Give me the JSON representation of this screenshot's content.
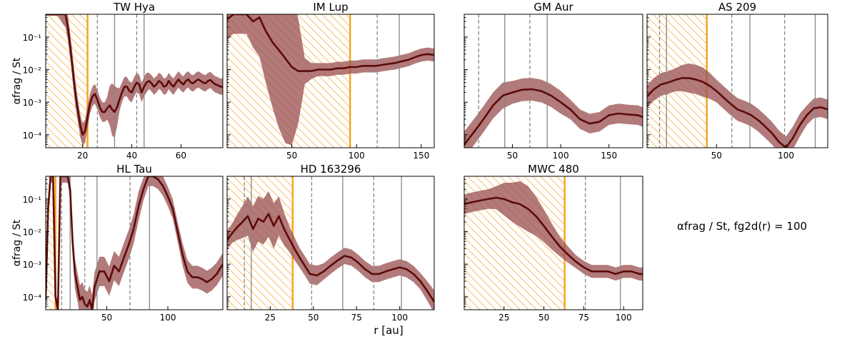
{
  "figure": {
    "xlabel": "r [au]",
    "ylabel": "αfrag / St",
    "legend_text": "αfrag / St, fg2d(r) = 100",
    "colors": {
      "line": "#5c0a0a",
      "band": "#9c5555",
      "hatch": "#f5a623",
      "gap_line": "#888888"
    }
  },
  "chart_data": [
    {
      "type": "line",
      "title": "TW Hya",
      "xlim": [
        5,
        77
      ],
      "xticks": [
        20,
        40,
        60
      ],
      "ylim": [
        4e-05,
        0.5
      ],
      "yscale": "log",
      "yticks": [
        "10⁻¹",
        "10⁻²",
        "10⁻³",
        "10⁻⁴"
      ],
      "hatch_region": [
        5,
        22
      ],
      "gaps_dashed": [
        26,
        42
      ],
      "rings_solid": [
        33,
        45
      ],
      "series": [
        {
          "x": [
            5,
            8,
            10,
            12,
            13,
            14,
            15,
            16,
            17,
            18,
            19,
            20,
            21,
            22,
            23,
            24,
            25,
            26,
            27,
            28,
            29,
            30,
            31,
            32,
            33,
            34,
            35,
            36,
            37,
            38,
            39,
            40,
            41,
            42,
            43,
            44,
            45,
            46,
            47,
            48,
            49,
            50,
            51,
            52,
            53,
            54,
            55,
            56,
            57,
            58,
            59,
            60,
            61,
            62,
            63,
            64,
            65,
            66,
            67,
            68,
            69,
            70,
            71,
            72,
            73,
            74,
            75,
            76,
            77
          ],
          "y": [
            0.5,
            0.5,
            0.5,
            0.5,
            0.5,
            0.2,
            0.05,
            0.01,
            0.002,
            0.0006,
            0.0002,
            0.0001,
            0.00013,
            0.00035,
            0.0009,
            0.0015,
            0.0018,
            0.0012,
            0.0007,
            0.0005,
            0.0005,
            0.00065,
            0.0008,
            0.0006,
            0.0005,
            0.0007,
            0.0012,
            0.002,
            0.003,
            0.003,
            0.0022,
            0.002,
            0.003,
            0.004,
            0.0035,
            0.002,
            0.003,
            0.004,
            0.0045,
            0.0038,
            0.003,
            0.0035,
            0.0045,
            0.004,
            0.003,
            0.0032,
            0.0045,
            0.0035,
            0.003,
            0.004,
            0.005,
            0.004,
            0.0035,
            0.0045,
            0.005,
            0.004,
            0.0038,
            0.0045,
            0.005,
            0.0045,
            0.004,
            0.0038,
            0.0045,
            0.0048,
            0.004,
            0.0035,
            0.0033,
            0.003,
            0.003
          ],
          "band_width": [
            0.05,
            0.05,
            0.05,
            0.3,
            0.4,
            0.4,
            0.4,
            0.4,
            0.4,
            0.35,
            0.35,
            0.35,
            0.35,
            0.35,
            0.3,
            0.3,
            0.3,
            0.3,
            0.3,
            0.3,
            0.3,
            0.35,
            0.6,
            0.8,
            0.8,
            0.6,
            0.35,
            0.3,
            0.3,
            0.3,
            0.3,
            0.3,
            0.3,
            0.3,
            0.3,
            0.3,
            0.3,
            0.3,
            0.25,
            0.25,
            0.25,
            0.25,
            0.25,
            0.25,
            0.25,
            0.25,
            0.25,
            0.25,
            0.25,
            0.25,
            0.25,
            0.25,
            0.25,
            0.25,
            0.25,
            0.25,
            0.25,
            0.25,
            0.25,
            0.25,
            0.25,
            0.25,
            0.25,
            0.25,
            0.25,
            0.25,
            0.25,
            0.25,
            0.25
          ]
        }
      ]
    },
    {
      "type": "line",
      "title": "IM Lup",
      "xlim": [
        0,
        160
      ],
      "xticks": [
        50,
        100,
        150
      ],
      "ylim": [
        4e-05,
        0.5
      ],
      "yscale": "log",
      "yticks": [],
      "hatch_region": [
        0,
        95
      ],
      "gaps_dashed": [
        116
      ],
      "rings_solid": [
        133
      ],
      "series": [
        {
          "x": [
            0,
            5,
            10,
            15,
            20,
            25,
            30,
            35,
            40,
            45,
            50,
            55,
            60,
            65,
            70,
            75,
            80,
            85,
            90,
            95,
            100,
            105,
            110,
            115,
            120,
            125,
            130,
            135,
            140,
            145,
            150,
            155,
            160
          ],
          "y": [
            0.35,
            0.5,
            0.5,
            0.5,
            0.3,
            0.4,
            0.15,
            0.07,
            0.04,
            0.022,
            0.012,
            0.009,
            0.009,
            0.009,
            0.01,
            0.01,
            0.01,
            0.011,
            0.011,
            0.012,
            0.012,
            0.013,
            0.013,
            0.013,
            0.014,
            0.015,
            0.016,
            0.018,
            0.02,
            0.024,
            0.028,
            0.03,
            0.028
          ],
          "band_width": [
            0.6,
            0.6,
            0.6,
            0.6,
            0.8,
            1.2,
            1.6,
            2.0,
            2.4,
            2.6,
            2.4,
            1.6,
            0.4,
            0.25,
            0.2,
            0.2,
            0.2,
            0.2,
            0.2,
            0.2,
            0.2,
            0.2,
            0.2,
            0.2,
            0.2,
            0.2,
            0.2,
            0.2,
            0.2,
            0.2,
            0.2,
            0.2,
            0.2
          ]
        }
      ]
    },
    {
      "type": "line",
      "title": "GM Aur",
      "xlim": [
        0,
        185
      ],
      "xticks": [
        50,
        100,
        150
      ],
      "ylim": [
        4e-05,
        0.5
      ],
      "yscale": "log",
      "yticks": [],
      "hatch_region": null,
      "gaps_dashed": [
        15,
        68
      ],
      "rings_solid": [
        42,
        86
      ],
      "series": [
        {
          "x": [
            0,
            10,
            20,
            30,
            40,
            50,
            60,
            70,
            80,
            90,
            100,
            110,
            120,
            130,
            140,
            150,
            160,
            170,
            180,
            185
          ],
          "y": [
            5e-05,
            0.00012,
            0.0003,
            0.0008,
            0.0016,
            0.002,
            0.0024,
            0.0025,
            0.0022,
            0.0016,
            0.001,
            0.0006,
            0.0003,
            0.00022,
            0.00025,
            0.0004,
            0.00045,
            0.00042,
            0.0004,
            0.00035
          ],
          "band_width": [
            0.4,
            0.4,
            0.4,
            0.4,
            0.4,
            0.35,
            0.35,
            0.35,
            0.35,
            0.35,
            0.35,
            0.3,
            0.3,
            0.3,
            0.3,
            0.3,
            0.3,
            0.3,
            0.3,
            0.3
          ]
        }
      ]
    },
    {
      "type": "line",
      "title": "AS 209",
      "xlim": [
        0,
        130
      ],
      "xticks": [
        50,
        100
      ],
      "ylim": [
        4e-05,
        0.5
      ],
      "yscale": "log",
      "yticks": [],
      "hatch_region": [
        0,
        43
      ],
      "gaps_dashed": [
        9,
        61,
        99
      ],
      "rings_solid": [
        14,
        74,
        121
      ],
      "series": [
        {
          "x": [
            0,
            5,
            10,
            15,
            20,
            25,
            30,
            35,
            40,
            45,
            50,
            55,
            60,
            65,
            70,
            75,
            80,
            85,
            90,
            95,
            100,
            105,
            110,
            115,
            120,
            125,
            130
          ],
          "y": [
            0.0015,
            0.0025,
            0.0035,
            0.004,
            0.0048,
            0.0055,
            0.0055,
            0.005,
            0.0042,
            0.0032,
            0.0022,
            0.0014,
            0.0009,
            0.0006,
            0.0005,
            0.0004,
            0.00028,
            0.00018,
            0.00011,
            6e-05,
            4e-05,
            8e-05,
            0.0002,
            0.0004,
            0.00065,
            0.0007,
            0.0006
          ],
          "band_width": [
            0.35,
            0.35,
            0.35,
            0.35,
            0.35,
            0.4,
            0.45,
            0.45,
            0.45,
            0.4,
            0.35,
            0.35,
            0.35,
            0.35,
            0.35,
            0.35,
            0.35,
            0.35,
            0.35,
            0.35,
            0.35,
            0.35,
            0.35,
            0.3,
            0.3,
            0.3,
            0.3
          ]
        }
      ]
    },
    {
      "type": "line",
      "title": "HL Tau",
      "xlim": [
        0,
        145
      ],
      "xticks": [
        50,
        100
      ],
      "ylim": [
        4e-05,
        0.5
      ],
      "yscale": "log",
      "yticks": [
        "10⁻¹",
        "10⁻²",
        "10⁻³",
        "10⁻⁴"
      ],
      "hatch_region": [
        0,
        8
      ],
      "gaps_dashed": [
        13,
        32,
        69
      ],
      "rings_solid": [
        20,
        42,
        85
      ],
      "series": [
        {
          "x": [
            0,
            2,
            4,
            6,
            8,
            10,
            12,
            14,
            16,
            18,
            20,
            22,
            24,
            26,
            28,
            30,
            32,
            34,
            36,
            38,
            40,
            44,
            48,
            52,
            56,
            60,
            64,
            68,
            72,
            76,
            80,
            84,
            88,
            92,
            96,
            100,
            104,
            108,
            112,
            116,
            120,
            124,
            128,
            132,
            136,
            140,
            145
          ],
          "y": [
            8e-05,
            0.05,
            0.5,
            0.5,
            0.0001,
            4e-05,
            0.5,
            0.5,
            0.5,
            0.5,
            0.2,
            0.005,
            0.0005,
            0.0002,
            8e-05,
            0.0001,
            6e-05,
            5e-05,
            8e-05,
            4e-05,
            0.0002,
            0.0006,
            0.0006,
            0.0003,
            0.0009,
            0.0006,
            0.0016,
            0.004,
            0.012,
            0.06,
            0.2,
            0.5,
            0.5,
            0.4,
            0.25,
            0.12,
            0.05,
            0.01,
            0.002,
            0.0006,
            0.0004,
            0.0004,
            0.00035,
            0.00028,
            0.00035,
            0.0005,
            0.001
          ],
          "band_width": [
            0.2,
            0.2,
            0.2,
            0.2,
            0.2,
            0.2,
            0.2,
            0.2,
            0.2,
            0.2,
            0.3,
            0.4,
            0.45,
            0.45,
            0.45,
            0.45,
            0.45,
            0.45,
            0.45,
            0.45,
            0.45,
            0.45,
            0.45,
            0.45,
            0.45,
            0.45,
            0.45,
            0.45,
            0.45,
            0.45,
            0.35,
            0.3,
            0.3,
            0.3,
            0.3,
            0.3,
            0.3,
            0.3,
            0.35,
            0.35,
            0.35,
            0.35,
            0.35,
            0.35,
            0.35,
            0.35,
            0.35
          ]
        }
      ]
    },
    {
      "type": "line",
      "title": "HD 163296",
      "xlim": [
        0,
        120
      ],
      "xticks": [
        25,
        50,
        75,
        100
      ],
      "ylim": [
        4e-05,
        0.5
      ],
      "yscale": "log",
      "yticks": [],
      "hatch_region": [
        0,
        38
      ],
      "gaps_dashed": [
        10,
        49,
        85
      ],
      "rings_solid": [
        14,
        67,
        101
      ],
      "series": [
        {
          "x": [
            0,
            3,
            6,
            9,
            12,
            15,
            18,
            21,
            24,
            27,
            30,
            33,
            36,
            39,
            42,
            45,
            48,
            52,
            56,
            60,
            64,
            68,
            72,
            76,
            80,
            84,
            88,
            92,
            96,
            100,
            104,
            108,
            112,
            116,
            120
          ],
          "y": [
            0.0055,
            0.009,
            0.014,
            0.02,
            0.03,
            0.012,
            0.025,
            0.02,
            0.035,
            0.015,
            0.03,
            0.012,
            0.006,
            0.003,
            0.0016,
            0.0009,
            0.0005,
            0.00045,
            0.0006,
            0.0009,
            0.0013,
            0.0018,
            0.0016,
            0.0011,
            0.0007,
            0.0005,
            0.0005,
            0.0006,
            0.0007,
            0.0008,
            0.0007,
            0.0005,
            0.0003,
            0.00015,
            7e-05
          ],
          "band_width": [
            0.3,
            0.3,
            0.4,
            0.5,
            0.6,
            0.7,
            0.7,
            0.7,
            0.7,
            0.7,
            0.6,
            0.5,
            0.4,
            0.35,
            0.3,
            0.3,
            0.3,
            0.3,
            0.25,
            0.25,
            0.25,
            0.25,
            0.25,
            0.25,
            0.25,
            0.25,
            0.25,
            0.25,
            0.25,
            0.25,
            0.25,
            0.25,
            0.25,
            0.3,
            0.35
          ]
        }
      ]
    },
    {
      "type": "line",
      "title": "MWC 480",
      "xlim": [
        0,
        112
      ],
      "xticks": [
        25,
        50,
        75,
        100
      ],
      "ylim": [
        4e-05,
        0.5
      ],
      "yscale": "log",
      "yticks": [],
      "hatch_region": [
        0,
        63
      ],
      "gaps_dashed": [
        76
      ],
      "rings_solid": [
        98
      ],
      "series": [
        {
          "x": [
            0,
            5,
            10,
            15,
            20,
            25,
            30,
            35,
            40,
            45,
            50,
            55,
            60,
            65,
            70,
            75,
            80,
            85,
            90,
            95,
            100,
            105,
            110,
            112
          ],
          "y": [
            0.07,
            0.08,
            0.09,
            0.1,
            0.11,
            0.1,
            0.08,
            0.07,
            0.05,
            0.03,
            0.015,
            0.007,
            0.0035,
            0.002,
            0.0012,
            0.0008,
            0.0006,
            0.0006,
            0.0006,
            0.0005,
            0.0006,
            0.0006,
            0.0005,
            0.0005
          ],
          "band_width": [
            0.3,
            0.3,
            0.3,
            0.3,
            0.35,
            0.5,
            0.6,
            0.7,
            0.7,
            0.6,
            0.5,
            0.4,
            0.3,
            0.25,
            0.2,
            0.2,
            0.2,
            0.2,
            0.2,
            0.2,
            0.2,
            0.2,
            0.2,
            0.2
          ]
        }
      ]
    }
  ]
}
